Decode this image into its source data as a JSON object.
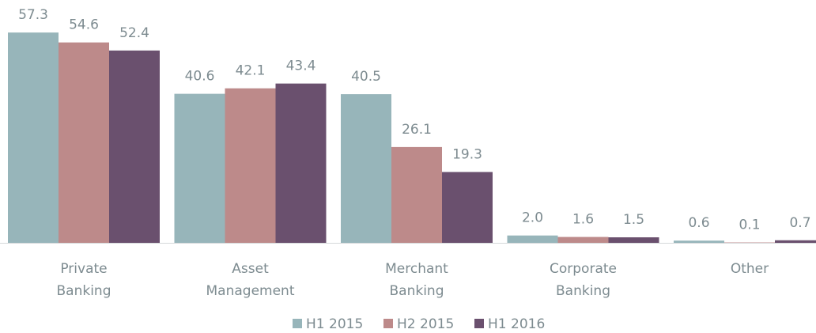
{
  "chart_data": {
    "type": "bar",
    "categories": [
      "Private Banking",
      "Asset Management",
      "Merchant Banking",
      "Corporate Banking",
      "Other"
    ],
    "series": [
      {
        "name": "H1 2015",
        "color": "#97b5ba",
        "values": [
          57.3,
          40.6,
          40.5,
          2.0,
          0.6
        ],
        "value_labels": [
          "57.3",
          "40.6",
          "40.5",
          "2.0",
          "0.6"
        ]
      },
      {
        "name": "H2 2015",
        "color": "#bd8a8a",
        "values": [
          54.6,
          42.1,
          26.1,
          1.6,
          0.1
        ],
        "value_labels": [
          "54.6",
          "42.1",
          "26.1",
          "1.6",
          "0.1"
        ]
      },
      {
        "name": "H1 2016",
        "color": "#6a506e",
        "values": [
          52.4,
          43.4,
          19.3,
          1.5,
          0.7
        ],
        "value_labels": [
          "52.4",
          "43.4",
          "19.3",
          "1.5",
          "0.7"
        ]
      }
    ],
    "legend": "bottom"
  }
}
